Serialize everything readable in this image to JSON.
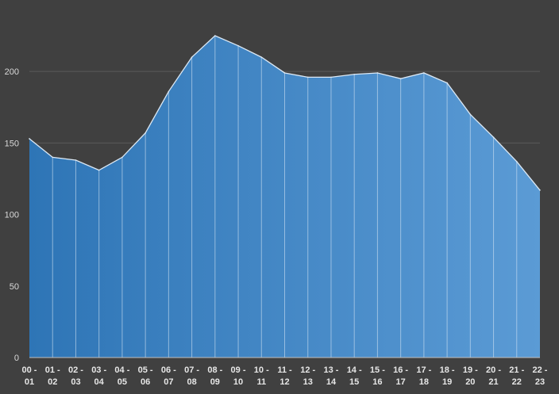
{
  "chart_data": {
    "type": "area",
    "title": "",
    "xlabel": "",
    "ylabel": "",
    "categories": [
      [
        "00 -",
        "01"
      ],
      [
        "01 -",
        "02"
      ],
      [
        "02 -",
        "03"
      ],
      [
        "03 -",
        "04"
      ],
      [
        "04 -",
        "05"
      ],
      [
        "05 -",
        "06"
      ],
      [
        "06 -",
        "07"
      ],
      [
        "07 -",
        "08"
      ],
      [
        "08 -",
        "09"
      ],
      [
        "09 -",
        "10"
      ],
      [
        "10 -",
        "11"
      ],
      [
        "11 -",
        "12"
      ],
      [
        "12 -",
        "13"
      ],
      [
        "13 -",
        "14"
      ],
      [
        "14 -",
        "15"
      ],
      [
        "15 -",
        "16"
      ],
      [
        "16 -",
        "17"
      ],
      [
        "17 -",
        "18"
      ],
      [
        "18 -",
        "19"
      ],
      [
        "19 -",
        "20"
      ],
      [
        "20 -",
        "21"
      ],
      [
        "21 -",
        "22"
      ],
      [
        "22 -",
        "23"
      ]
    ],
    "series": [
      {
        "values": [
          153,
          140,
          138,
          131,
          140,
          157,
          186,
          210,
          225,
          218,
          210,
          199,
          196,
          196,
          198,
          199,
          195,
          199,
          192,
          170,
          154,
          137,
          117
        ]
      }
    ],
    "ylim": [
      0,
      240
    ],
    "yticks": [
      "0",
      "50",
      "100",
      "150",
      "200"
    ],
    "grid": true,
    "legend": "none",
    "colors": {
      "background": "#404040",
      "fill_start": "#2e75b6",
      "fill_end": "#5b9bd5",
      "line": "#dce9f5",
      "grid": "#595959",
      "axis": "#bfbfbf"
    }
  }
}
